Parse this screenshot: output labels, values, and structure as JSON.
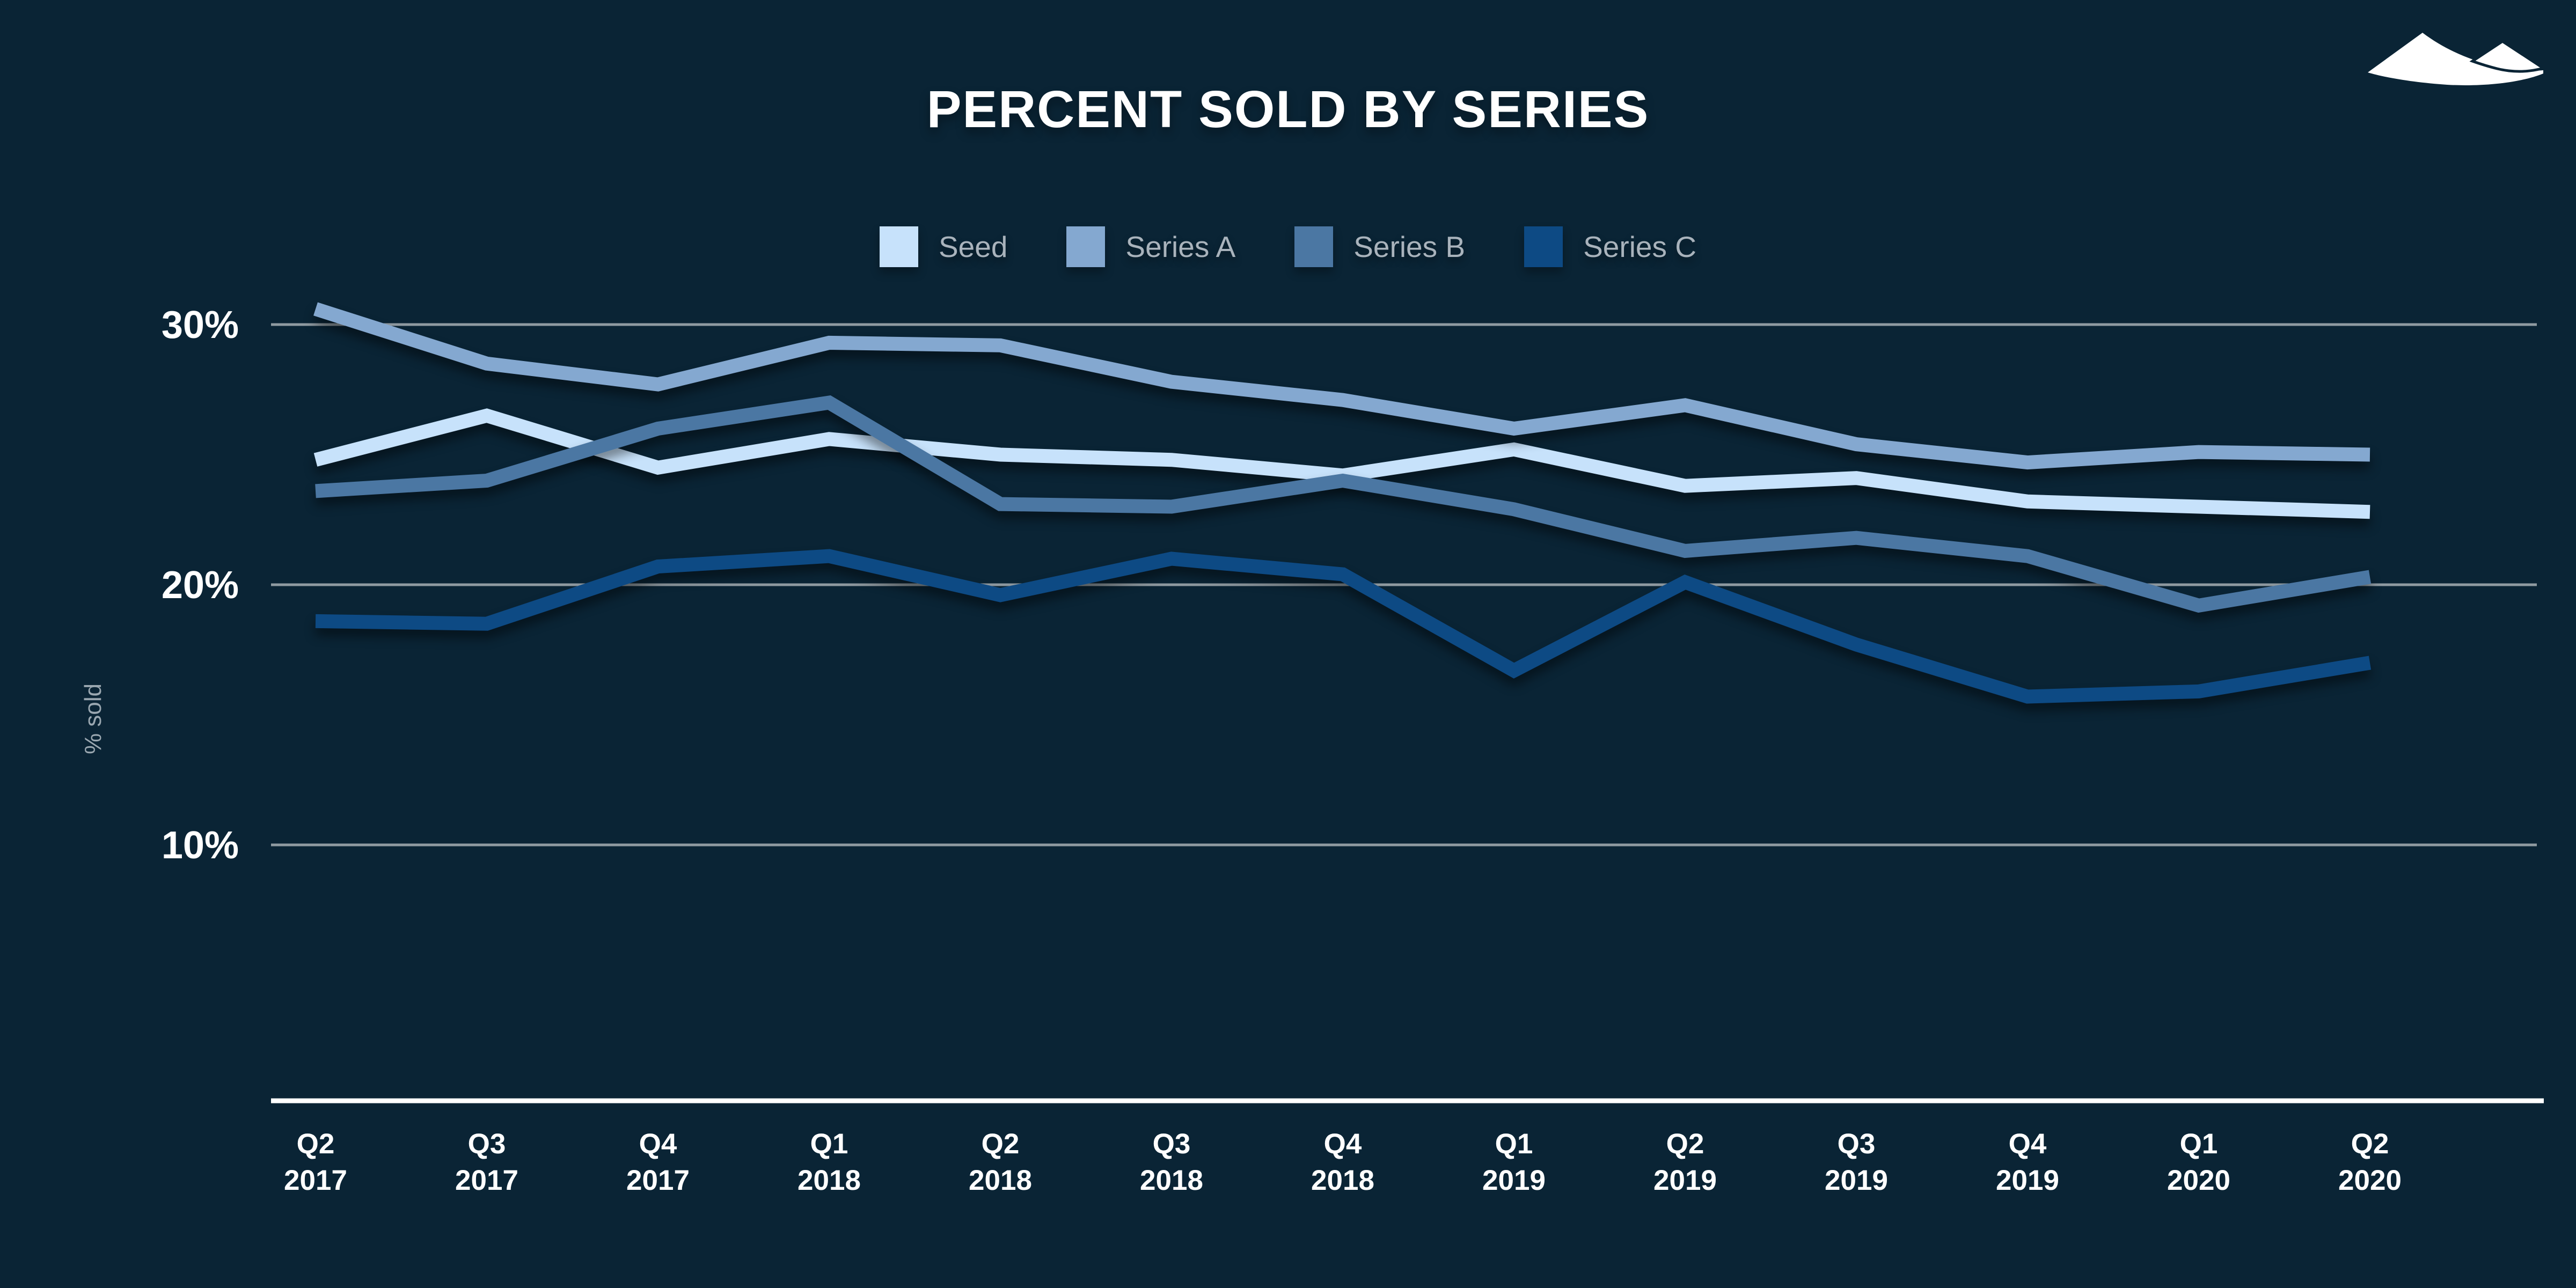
{
  "header": {
    "title": "PERCENT SOLD BY SERIES",
    "logo_icon": "mountains-logo-icon"
  },
  "colors": {
    "background": "#0a2435",
    "gridline": "#8f9aa1",
    "axis_line": "#ffffff",
    "tick_text": "#ffffff",
    "legend_text": "#a9b3bc",
    "ylabel_text": "#9aa7b0",
    "title_text": "#ffffff",
    "logo": "#ffffff"
  },
  "chart_data": {
    "type": "line",
    "title": "PERCENT SOLD BY SERIES",
    "xlabel": "",
    "ylabel": "% sold",
    "x_categories": [
      "Q2 2017",
      "Q3 2017",
      "Q4 2017",
      "Q1 2018",
      "Q2 2018",
      "Q3 2018",
      "Q4 2018",
      "Q1 2019",
      "Q2 2019",
      "Q3 2019",
      "Q4 2019",
      "Q1 2020",
      "Q2 2020"
    ],
    "y_ticks": [
      {
        "label": "30%",
        "value": 30
      },
      {
        "label": "20%",
        "value": 20
      },
      {
        "label": "10%",
        "value": 10
      }
    ],
    "ylim": [
      0,
      34
    ],
    "grid": "horizontal",
    "legend_position": "top",
    "series": [
      {
        "name": "Seed",
        "color": "#c7e2fb",
        "values": [
          24.8,
          26.5,
          24.5,
          25.6,
          25.0,
          24.8,
          24.2,
          25.2,
          23.8,
          24.1,
          23.2,
          23.0,
          22.8
        ]
      },
      {
        "name": "Series A",
        "color": "#84a8d0",
        "values": [
          30.6,
          28.5,
          27.7,
          29.3,
          29.2,
          27.8,
          27.1,
          26.0,
          26.9,
          25.4,
          24.7,
          25.1,
          25.0
        ]
      },
      {
        "name": "Series B",
        "color": "#4b77a3",
        "values": [
          23.6,
          24.0,
          26.0,
          27.0,
          23.1,
          23.0,
          24.0,
          22.9,
          21.3,
          21.8,
          21.1,
          19.2,
          20.3
        ]
      },
      {
        "name": "Series C",
        "color": "#0d4a84",
        "values": [
          18.6,
          18.5,
          20.7,
          21.1,
          19.6,
          21.0,
          20.4,
          16.7,
          20.1,
          17.7,
          15.7,
          15.9,
          17.0
        ]
      }
    ]
  }
}
